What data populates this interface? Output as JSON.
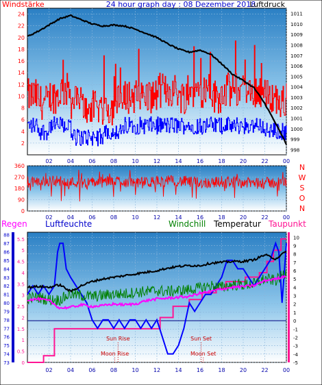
{
  "page_title": "24 hour graph day : 08 Dezember 2018",
  "chart_data": [
    {
      "type": "line",
      "title": "24 hour graph day : 08 Dezember 2018",
      "left_label": "Windstärke",
      "right_label": "Luftdruck",
      "x_ticks": [
        "02",
        "04",
        "06",
        "08",
        "10",
        "12",
        "14",
        "16",
        "18",
        "20",
        "22",
        "00"
      ],
      "x_range": [
        0,
        24
      ],
      "y_left_ticks": [
        "2",
        "4",
        "6",
        "8",
        "10",
        "12",
        "14",
        "16",
        "18",
        "20",
        "22",
        "24"
      ],
      "y_left_range": [
        0,
        25
      ],
      "y_right_ticks": [
        "998",
        "999",
        "1000",
        "1001",
        "1002",
        "1003",
        "1004",
        "1005",
        "1006",
        "1007",
        "1008",
        "1009",
        "1010",
        "1011"
      ],
      "y_right_range": [
        997.5,
        1011.5
      ],
      "grid": true,
      "series": [
        {
          "role": "pressure",
          "color": "#000000",
          "axis": "right",
          "x": [
            0,
            1,
            2,
            3,
            4,
            5,
            6,
            7,
            8,
            9,
            10,
            11,
            12,
            13,
            14,
            15,
            16,
            17,
            18,
            19,
            20,
            21,
            22,
            23,
            24
          ],
          "values": [
            1008.8,
            1009.3,
            1009.9,
            1010.5,
            1010.8,
            1010.4,
            1010.0,
            1009.8,
            1009.9,
            1009.8,
            1009.5,
            1009.1,
            1008.7,
            1008.1,
            1007.6,
            1007.3,
            1007.5,
            1007.1,
            1006.2,
            1005.2,
            1004.6,
            1003.9,
            1002.4,
            1000.5,
            998.5
          ]
        },
        {
          "role": "wind_gust",
          "color": "#ff0000",
          "axis": "left",
          "level_hourly": [
            10,
            9,
            10,
            11,
            9,
            8,
            8,
            8,
            9,
            10,
            10,
            10,
            11,
            11,
            10,
            11,
            11,
            10,
            11,
            11,
            10,
            11,
            10,
            9
          ],
          "peak_max": 24
        },
        {
          "role": "wind_avg",
          "color": "#0000ff",
          "axis": "left",
          "level_hourly": [
            5,
            4,
            5,
            5,
            3,
            3,
            3,
            4,
            4,
            5,
            5,
            5,
            5,
            5,
            5,
            5,
            5,
            5,
            5,
            5,
            5,
            5,
            4,
            4
          ]
        }
      ]
    },
    {
      "type": "line",
      "title": "",
      "right_labels": [
        "N",
        "W",
        "S",
        "O",
        "N"
      ],
      "x_ticks": [
        "02",
        "04",
        "06",
        "08",
        "10",
        "12",
        "14",
        "16",
        "18",
        "20",
        "22",
        "00"
      ],
      "y_ticks": [
        "0",
        "90",
        "180",
        "270",
        "360"
      ],
      "y_range": [
        0,
        360
      ],
      "series": [
        {
          "role": "wind_direction",
          "color": "#ff0000",
          "mean_hourly": [
            230,
            235,
            240,
            235,
            230,
            225,
            230,
            235,
            240,
            230,
            225,
            230,
            235,
            240,
            235,
            230,
            225,
            230,
            235,
            230,
            225,
            220,
            225,
            230
          ],
          "spread": 90
        }
      ]
    },
    {
      "type": "line",
      "title": "",
      "labels": {
        "rain": "Regen",
        "humidity": "Luftfeuchte",
        "windchill": "Windchill",
        "temperature": "Temperatur",
        "dewpoint": "Taupunkt"
      },
      "x_ticks": [
        "02",
        "04",
        "06",
        "08",
        "10",
        "12",
        "14",
        "16",
        "18",
        "20",
        "22",
        "00"
      ],
      "y_rain_ticks": [
        "0",
        "0.5",
        "1",
        "1.5",
        "2",
        "2.5",
        "3",
        "3.5",
        "4",
        "4.5",
        "5",
        "5.5"
      ],
      "y_rain_range": [
        0,
        5.8
      ],
      "y_humidity_ticks": [
        "73",
        "74",
        "75",
        "76",
        "77",
        "78",
        "79",
        "80",
        "81",
        "82",
        "83",
        "84",
        "85",
        "86",
        "87",
        "88"
      ],
      "y_humidity_range": [
        73,
        88.3
      ],
      "y_temperature_ticks": [
        "-5",
        "-4",
        "-3",
        "-2",
        "-1",
        "0",
        "1",
        "2",
        "3",
        "4",
        "5",
        "6",
        "7",
        "8",
        "9",
        "10"
      ],
      "y_temperature_range": [
        -5,
        10.6
      ],
      "annotations": {
        "sun_rise": "Sun Rise",
        "sun_set": "Sun Set",
        "moon_rise": "Moon Rise",
        "moon_set": "Moon Set"
      },
      "event_times": {
        "sun_rise": 8.4,
        "sun_set": 16.1,
        "moon_rise": 8.1,
        "moon_set": 16.3
      },
      "zero_line_temperature": 0,
      "series": [
        {
          "role": "rain",
          "name": "Regen",
          "color": "#ff1493",
          "axis": "rain",
          "x": [
            0,
            1.5,
            1.5,
            2.5,
            2.5,
            12.3,
            12.3,
            13.5,
            13.5,
            15.0,
            15.0,
            16.2,
            16.2,
            17.5,
            17.5,
            18.4,
            18.4,
            20.2,
            20.2,
            21.5,
            21.5,
            22.2,
            22.2,
            22.8,
            22.8,
            23.5,
            23.5,
            24
          ],
          "values": [
            0,
            0,
            0.3,
            0.3,
            1.5,
            1.5,
            2.0,
            2.0,
            2.5,
            2.5,
            2.8,
            2.8,
            3.1,
            3.1,
            3.3,
            3.3,
            3.6,
            3.6,
            3.8,
            3.8,
            4.0,
            4.0,
            4.5,
            4.5,
            5.0,
            5.0,
            5.5,
            5.5
          ]
        },
        {
          "role": "humidity",
          "name": "Luftfeuchte",
          "color": "#0000ff",
          "axis": "humidity",
          "x": [
            0,
            0.5,
            1.0,
            1.5,
            2.0,
            2.5,
            2.8,
            3.0,
            3.3,
            3.6,
            4.0,
            4.5,
            5.0,
            5.5,
            6.0,
            6.5,
            7.0,
            7.5,
            8.0,
            8.5,
            9.0,
            9.5,
            10.0,
            10.5,
            11.0,
            11.5,
            12.0,
            12.5,
            13.0,
            13.5,
            14.0,
            14.5,
            15.0,
            15.5,
            16.0,
            16.5,
            17.0,
            17.5,
            18.0,
            18.5,
            19.0,
            19.5,
            20.0,
            20.5,
            21.0,
            21.5,
            22.0,
            22.5,
            23.0,
            23.3,
            23.6,
            24
          ],
          "values": [
            81,
            82,
            81,
            82,
            81,
            82,
            86,
            87,
            87,
            84,
            83,
            82,
            81,
            80,
            78,
            77,
            78,
            78,
            77,
            78,
            77,
            78,
            78,
            77,
            78,
            77,
            78,
            76,
            74,
            74,
            75,
            77,
            80,
            79,
            80,
            81,
            81,
            82,
            83,
            85,
            85,
            84,
            84,
            83,
            82,
            83,
            84,
            85,
            87,
            86,
            80,
            87
          ]
        },
        {
          "role": "temperature",
          "name": "Temperatur",
          "color": "#000000",
          "axis": "temperature",
          "x": [
            0,
            1,
            2,
            3,
            4,
            5,
            6,
            7,
            8,
            9,
            10,
            11,
            12,
            13,
            14,
            15,
            16,
            17,
            18,
            19,
            20,
            21,
            22,
            23,
            24
          ],
          "values": [
            4.0,
            4.1,
            4.0,
            4.3,
            3.5,
            4.2,
            4.7,
            5.0,
            5.2,
            5.4,
            5.6,
            5.8,
            6.0,
            6.3,
            6.5,
            6.6,
            6.6,
            6.9,
            7.0,
            7.1,
            7.1,
            7.3,
            7.9,
            7.4,
            8.3
          ]
        },
        {
          "role": "windchill",
          "name": "Windchill",
          "color": "#008000",
          "axis": "temperature",
          "x": [
            0,
            1,
            2,
            3,
            4,
            5,
            6,
            7,
            8,
            9,
            10,
            11,
            12,
            13,
            14,
            15,
            16,
            17,
            18,
            19,
            20,
            21,
            22,
            23,
            24
          ],
          "values": [
            2.7,
            2.8,
            2.5,
            2.5,
            3.2,
            3.0,
            2.9,
            3.0,
            3.2,
            3.2,
            3.4,
            3.5,
            3.6,
            3.5,
            3.6,
            3.7,
            3.9,
            4.2,
            4.0,
            4.3,
            4.3,
            4.4,
            5.0,
            4.8,
            5.8
          ]
        },
        {
          "role": "dewpoint",
          "name": "Taupunkt",
          "color": "#ff00ff",
          "axis": "temperature",
          "x": [
            0,
            1,
            2,
            3,
            4,
            5,
            6,
            7,
            8,
            9,
            10,
            11,
            12,
            13,
            14,
            15,
            16,
            17,
            18,
            19,
            20,
            21,
            22,
            23,
            24
          ],
          "values": [
            2.5,
            2.6,
            2.4,
            1.5,
            1.6,
            1.9,
            1.7,
            1.8,
            2.0,
            1.9,
            2.0,
            2.4,
            2.6,
            2.7,
            2.8,
            2.9,
            3.3,
            3.5,
            3.8,
            4.0,
            4.1,
            4.2,
            4.8,
            5.0,
            5.4
          ]
        }
      ]
    }
  ]
}
